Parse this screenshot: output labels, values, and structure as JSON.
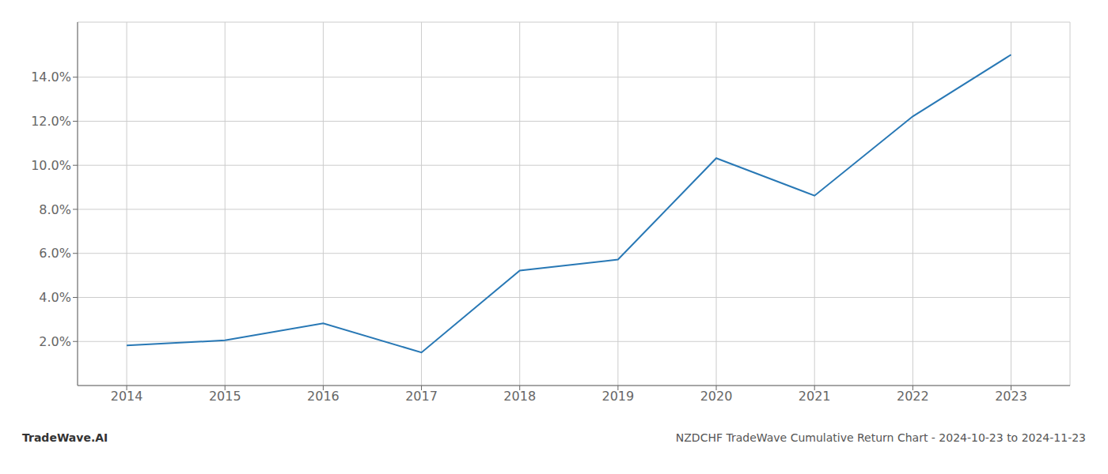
{
  "chart_data": {
    "type": "line",
    "title": "NZDCHF TradeWave Cumulative Return Chart - 2024-10-23 to 2024-11-23",
    "annotations": [
      "TradeWave.AI"
    ],
    "x": [
      2014,
      2015,
      2016,
      2017,
      2018,
      2019,
      2020,
      2021,
      2022,
      2023
    ],
    "values": [
      1.82,
      2.05,
      2.82,
      1.5,
      5.22,
      5.72,
      10.32,
      8.62,
      12.22,
      15.02
    ],
    "color": "#2878b5",
    "xlim": [
      2013.5,
      2023.6
    ],
    "xticks": [
      2014,
      2015,
      2016,
      2017,
      2018,
      2019,
      2020,
      2021,
      2022,
      2023
    ],
    "ylim": [
      0.0,
      16.5
    ],
    "yticks": [
      {
        "value": 2.0,
        "label": "2.0%"
      },
      {
        "value": 4.0,
        "label": "4.0%"
      },
      {
        "value": 6.0,
        "label": "6.0%"
      },
      {
        "value": 8.0,
        "label": "8.0%"
      },
      {
        "value": 10.0,
        "label": "10.0%"
      },
      {
        "value": 12.0,
        "label": "12.0%"
      },
      {
        "value": 14.0,
        "label": "14.0%"
      }
    ],
    "grid": true
  }
}
